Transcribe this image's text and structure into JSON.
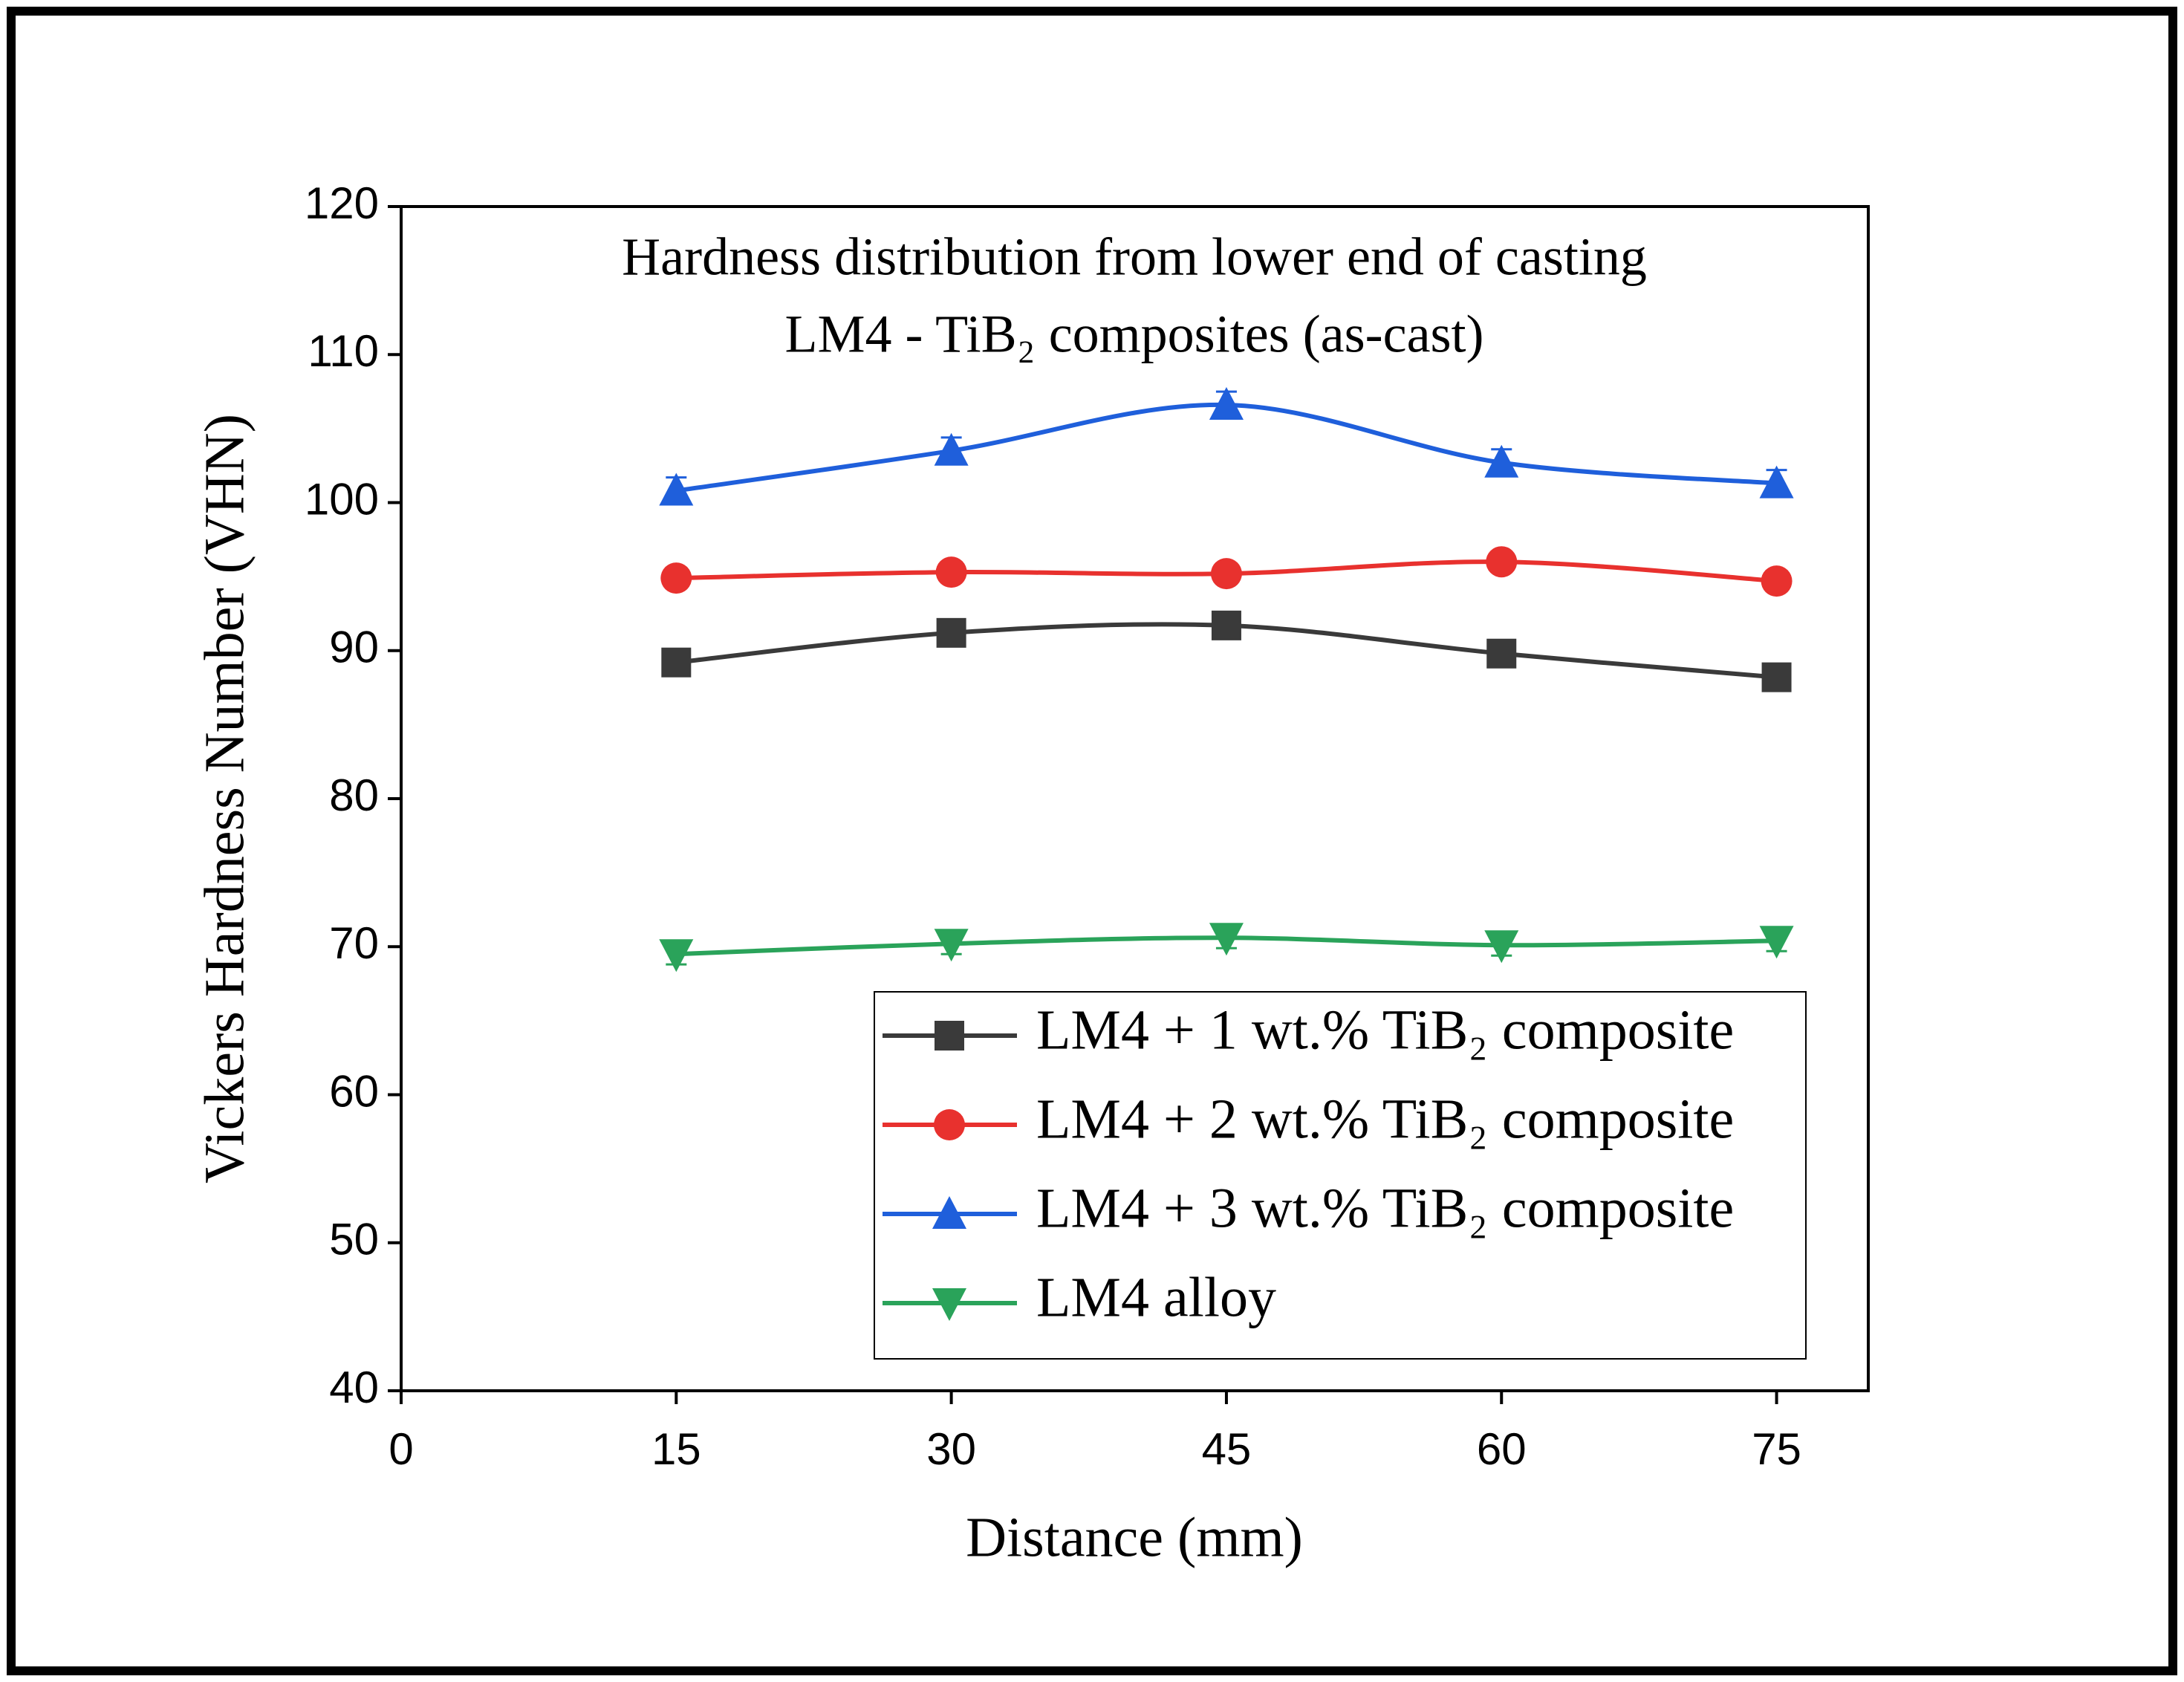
{
  "chart_data": {
    "type": "line",
    "title": "Hardness distribution from lower end of casting",
    "subtitle": "LM4 - TiB₂ composites (as-cast)",
    "x_label": "Distance (mm)",
    "y_label": "Vickers Hardness Number (VHN)",
    "x": [
      15,
      30,
      45,
      60,
      75
    ],
    "series": [
      {
        "name": "LM4 + 1 wt.% TiB₂ composite",
        "color": "#3a3a3a",
        "marker": "square",
        "values": [
          89.2,
          91.2,
          91.7,
          89.8,
          88.2
        ],
        "errors": [
          0.7,
          0.7,
          0.7,
          0.7,
          0.7
        ]
      },
      {
        "name": "LM4 + 2 wt.% TiB₂ composite",
        "color": "#e8312e",
        "marker": "circle",
        "values": [
          94.9,
          95.3,
          95.2,
          96.0,
          94.7
        ],
        "errors": [
          0.7,
          0.7,
          0.7,
          0.7,
          0.7
        ]
      },
      {
        "name": "LM4 + 3 wt.% TiB₂ composite",
        "color": "#1f5fdb",
        "marker": "triangle-up",
        "values": [
          100.8,
          103.5,
          106.6,
          102.7,
          101.3
        ],
        "errors": [
          0.9,
          0.9,
          0.9,
          0.9,
          0.9
        ]
      },
      {
        "name": "LM4 alloy",
        "color": "#2aa35a",
        "marker": "triangle-down",
        "values": [
          69.5,
          70.2,
          70.6,
          70.1,
          70.4
        ],
        "errors": [
          0.7,
          0.7,
          0.7,
          0.7,
          0.7
        ]
      }
    ],
    "xlim": [
      0,
      80
    ],
    "xticks": [
      0,
      15,
      30,
      45,
      60,
      75
    ],
    "ylim": [
      40,
      120
    ],
    "yticks": [
      40,
      50,
      60,
      70,
      80,
      90,
      100,
      110,
      120
    ],
    "grid": false,
    "smooth": true,
    "legend": "lower right"
  }
}
